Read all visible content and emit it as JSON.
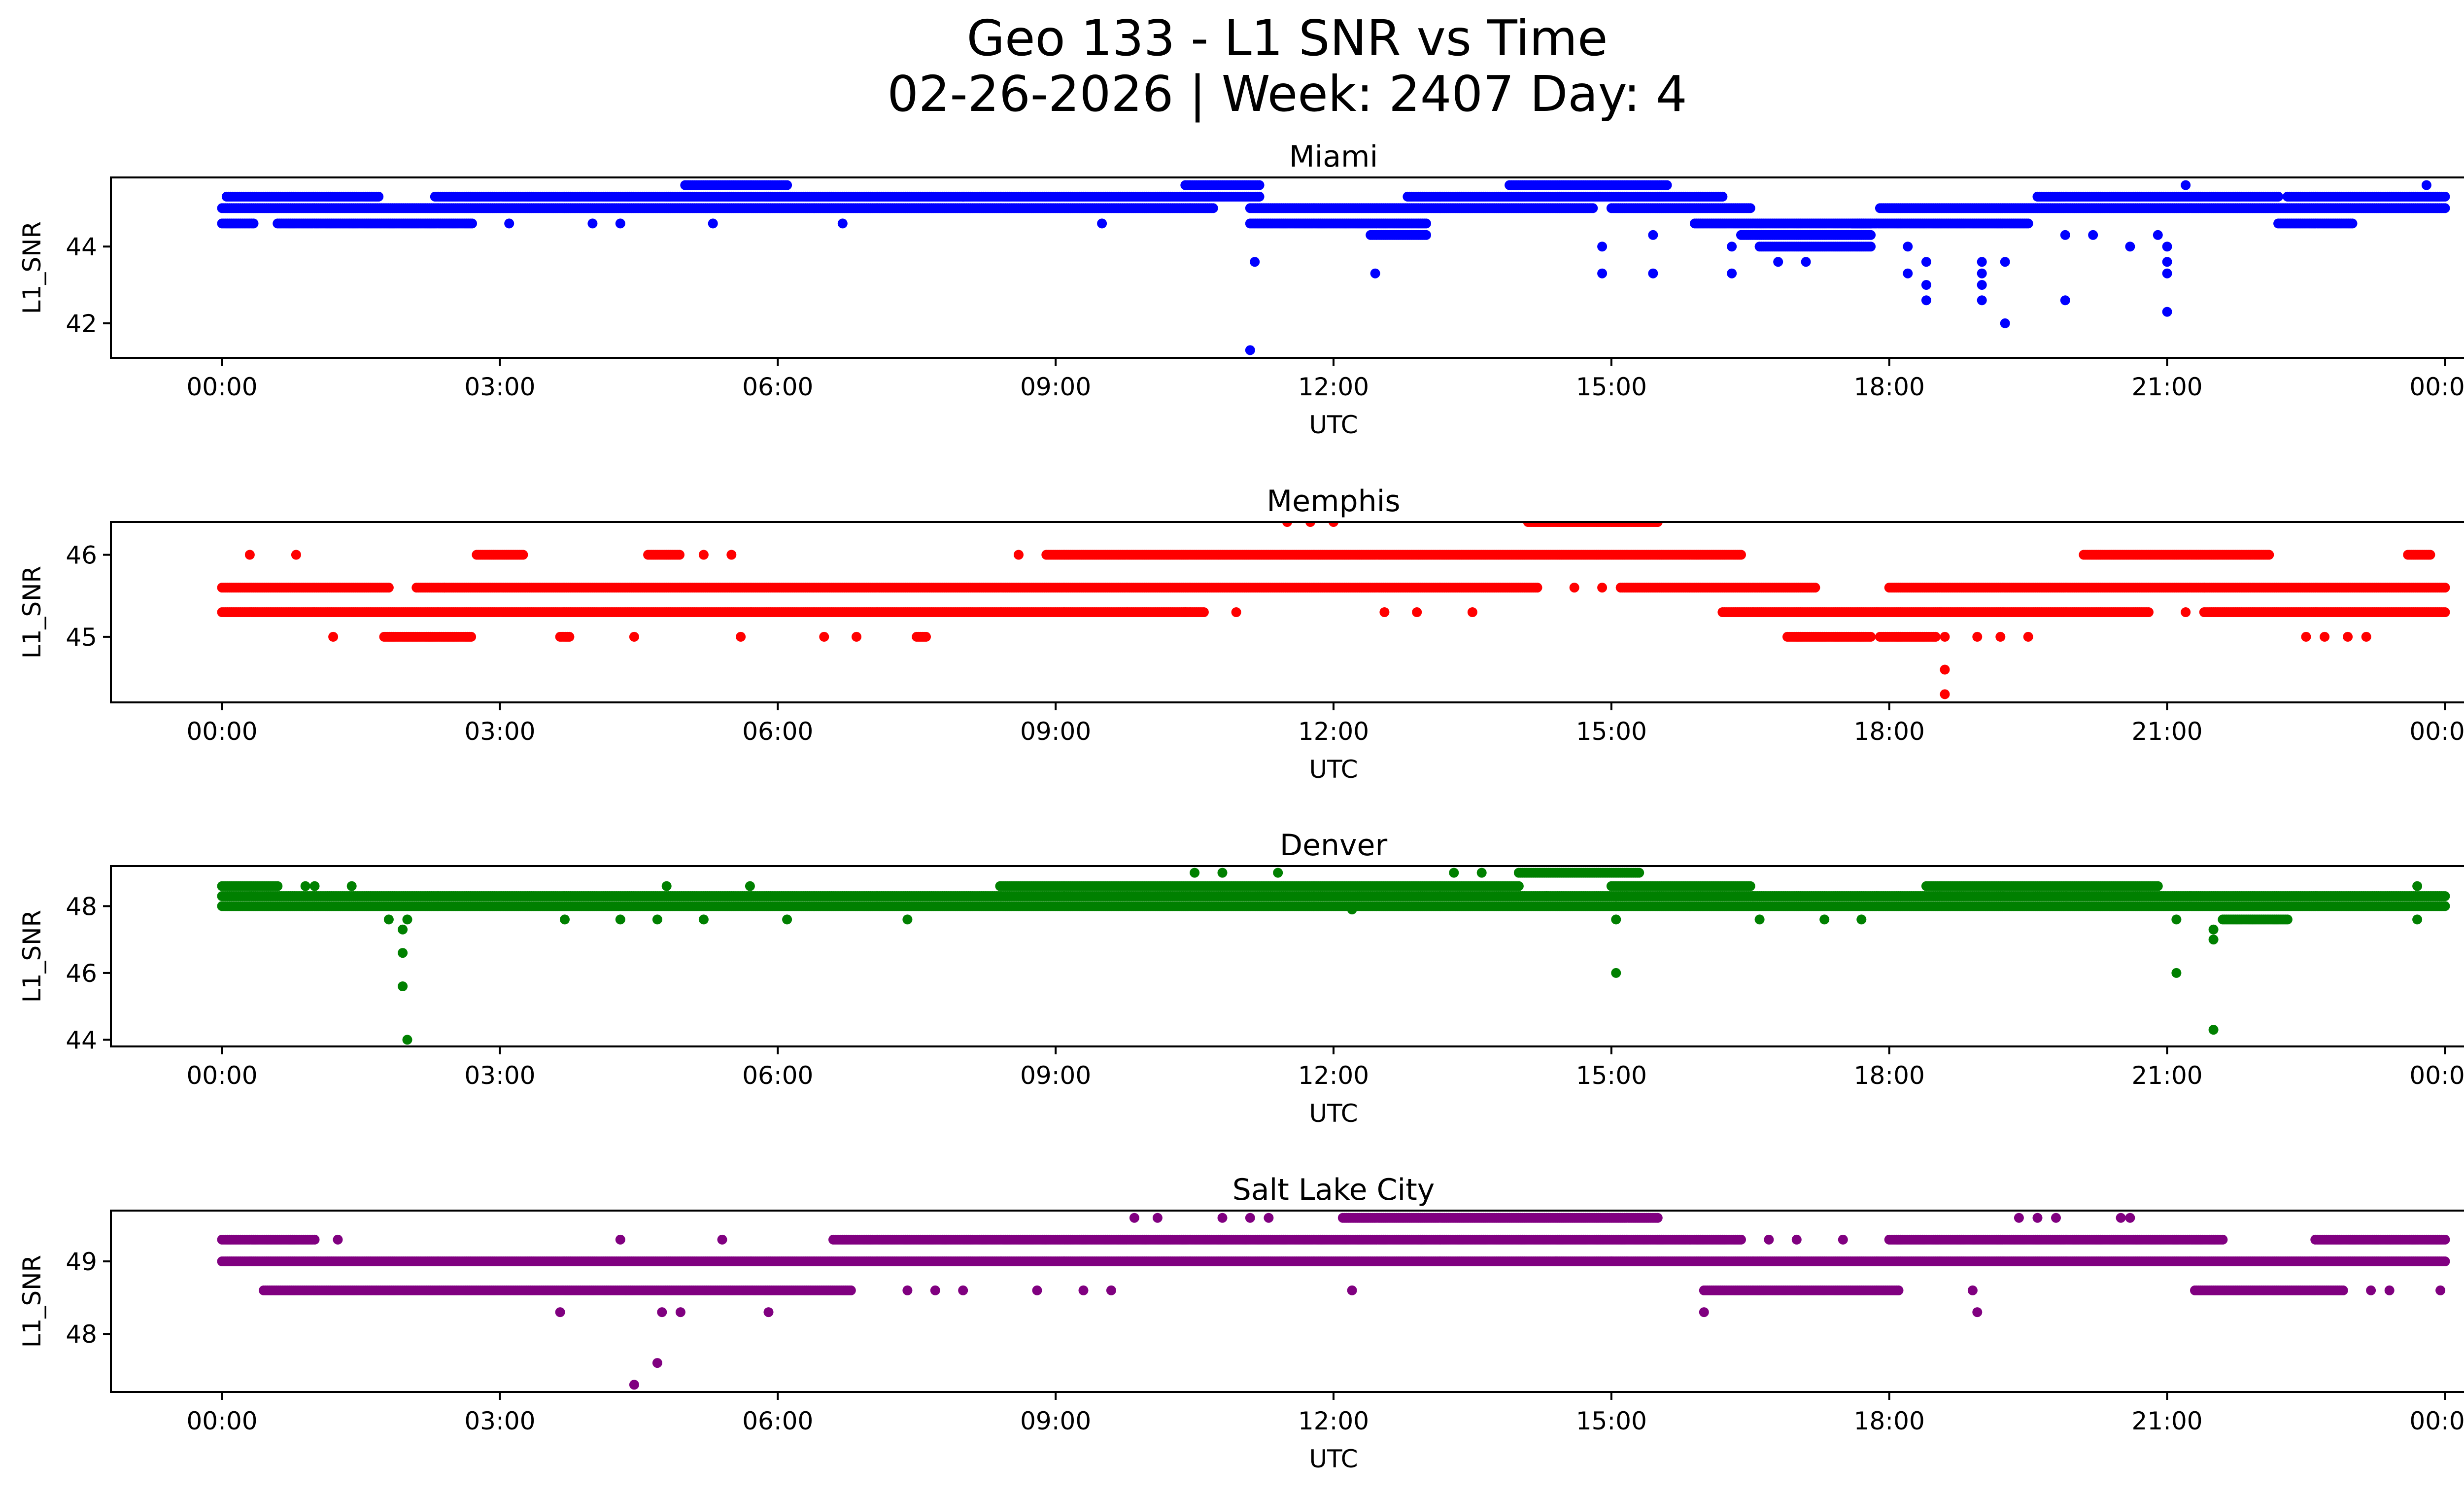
{
  "figure": {
    "title_line1": "Geo 133 - L1 SNR vs Time",
    "title_line2": "02-26-2026 | Week: 2407 Day: 4"
  },
  "chart_data": [
    {
      "type": "scatter",
      "title": "Miami",
      "xlabel": "UTC",
      "ylabel": "L1_SNR",
      "color": "#0000ff",
      "xlim_hours": [
        -1.2,
        25.2
      ],
      "ylim": [
        41.1,
        45.8
      ],
      "x_ticks": [
        "00:00",
        "03:00",
        "06:00",
        "09:00",
        "12:00",
        "15:00",
        "18:00",
        "21:00",
        "00:00"
      ],
      "x_tick_hours": [
        0,
        3,
        6,
        9,
        12,
        15,
        18,
        21,
        24
      ],
      "y_ticks": [
        42,
        44
      ],
      "runs": [
        [
          45.3,
          0.05,
          1.7
        ],
        [
          45.0,
          0.0,
          10.7
        ],
        [
          44.6,
          0.0,
          0.35
        ],
        [
          44.6,
          0.6,
          2.7
        ],
        [
          45.3,
          2.3,
          8.0
        ],
        [
          45.6,
          5.0,
          6.1
        ],
        [
          45.3,
          8.0,
          11.2
        ],
        [
          45.6,
          10.4,
          11.2
        ],
        [
          44.6,
          11.1,
          13.0
        ],
        [
          45.0,
          11.1,
          14.8
        ],
        [
          44.3,
          12.4,
          13.0
        ],
        [
          45.3,
          12.8,
          16.2
        ],
        [
          45.6,
          13.9,
          15.6
        ],
        [
          45.0,
          15.0,
          16.5
        ],
        [
          44.6,
          15.9,
          17.8
        ],
        [
          44.3,
          16.4,
          17.8
        ],
        [
          44.0,
          16.6,
          17.8
        ],
        [
          44.6,
          17.6,
          19.5
        ],
        [
          45.0,
          17.9,
          24.0
        ],
        [
          45.3,
          19.6,
          22.2
        ],
        [
          45.3,
          22.3,
          24.0
        ],
        [
          44.6,
          22.2,
          23.0
        ]
      ],
      "points": [
        [
          3.1,
          44.6
        ],
        [
          4.0,
          44.6
        ],
        [
          4.3,
          44.6
        ],
        [
          5.3,
          44.6
        ],
        [
          6.7,
          44.6
        ],
        [
          9.5,
          44.6
        ],
        [
          11.15,
          43.6
        ],
        [
          11.1,
          41.3
        ],
        [
          12.45,
          43.3
        ],
        [
          14.9,
          43.3
        ],
        [
          14.9,
          44.0
        ],
        [
          15.45,
          43.3
        ],
        [
          15.45,
          44.3
        ],
        [
          16.3,
          43.3
        ],
        [
          16.3,
          44.0
        ],
        [
          16.8,
          43.6
        ],
        [
          17.1,
          43.6
        ],
        [
          18.2,
          43.3
        ],
        [
          18.2,
          44.0
        ],
        [
          18.4,
          43.6
        ],
        [
          18.4,
          43.0
        ],
        [
          18.4,
          42.6
        ],
        [
          19.0,
          43.6
        ],
        [
          19.0,
          43.3
        ],
        [
          19.0,
          43.0
        ],
        [
          19.0,
          42.6
        ],
        [
          19.25,
          43.6
        ],
        [
          19.25,
          42.0
        ],
        [
          19.9,
          44.3
        ],
        [
          19.9,
          42.6
        ],
        [
          20.2,
          44.3
        ],
        [
          20.6,
          44.0
        ],
        [
          20.9,
          44.3
        ],
        [
          21.0,
          44.0
        ],
        [
          21.0,
          43.6
        ],
        [
          21.0,
          43.3
        ],
        [
          21.0,
          42.3
        ],
        [
          21.2,
          45.6
        ],
        [
          23.8,
          45.6
        ]
      ]
    },
    {
      "type": "scatter",
      "title": "Memphis",
      "xlabel": "UTC",
      "ylabel": "L1_SNR",
      "color": "#ff0000",
      "xlim_hours": [
        -1.2,
        25.2
      ],
      "ylim": [
        44.2,
        46.4
      ],
      "x_ticks": [
        "00:00",
        "03:00",
        "06:00",
        "09:00",
        "12:00",
        "15:00",
        "18:00",
        "21:00",
        "00:00"
      ],
      "x_tick_hours": [
        0,
        3,
        6,
        9,
        12,
        15,
        18,
        21,
        24
      ],
      "y_ticks": [
        45,
        46
      ],
      "runs": [
        [
          45.6,
          0.0,
          1.8
        ],
        [
          45.3,
          0.0,
          10.6
        ],
        [
          45.6,
          2.1,
          14.2
        ],
        [
          46.0,
          2.75,
          3.25
        ],
        [
          46.0,
          4.6,
          4.95
        ],
        [
          45.0,
          1.75,
          2.7
        ],
        [
          45.0,
          3.65,
          3.75
        ],
        [
          45.0,
          7.5,
          7.6
        ],
        [
          46.0,
          8.9,
          16.4
        ],
        [
          45.6,
          15.1,
          17.2
        ],
        [
          45.3,
          16.2,
          20.8
        ],
        [
          45.0,
          16.9,
          17.8
        ],
        [
          45.0,
          17.9,
          18.5
        ],
        [
          45.6,
          18.0,
          24.0
        ],
        [
          46.4,
          14.1,
          15.5
        ],
        [
          46.0,
          20.1,
          22.1
        ],
        [
          45.3,
          21.4,
          24.0
        ],
        [
          46.0,
          23.6,
          23.85
        ]
      ],
      "points": [
        [
          0.3,
          46.0
        ],
        [
          0.8,
          46.0
        ],
        [
          1.2,
          45.0
        ],
        [
          2.4,
          45.6
        ],
        [
          4.45,
          45.0
        ],
        [
          5.2,
          46.0
        ],
        [
          5.5,
          46.0
        ],
        [
          5.6,
          45.0
        ],
        [
          6.5,
          45.0
        ],
        [
          6.85,
          45.0
        ],
        [
          8.6,
          46.0
        ],
        [
          10.4,
          45.3
        ],
        [
          10.95,
          45.3
        ],
        [
          11.5,
          46.4
        ],
        [
          11.75,
          46.4
        ],
        [
          12.0,
          46.4
        ],
        [
          12.55,
          45.3
        ],
        [
          12.9,
          45.3
        ],
        [
          13.5,
          45.3
        ],
        [
          14.6,
          45.6
        ],
        [
          14.9,
          45.6
        ],
        [
          18.6,
          45.0
        ],
        [
          18.95,
          45.0
        ],
        [
          19.2,
          45.0
        ],
        [
          19.5,
          45.0
        ],
        [
          18.6,
          44.6
        ],
        [
          18.6,
          44.3
        ],
        [
          21.2,
          45.3
        ],
        [
          21.4,
          45.6
        ],
        [
          22.5,
          45.0
        ],
        [
          22.7,
          45.0
        ],
        [
          22.95,
          45.0
        ],
        [
          23.15,
          45.0
        ]
      ]
    },
    {
      "type": "scatter",
      "title": "Denver",
      "xlabel": "UTC",
      "ylabel": "L1_SNR",
      "color": "#008000",
      "xlim_hours": [
        -1.2,
        25.2
      ],
      "ylim": [
        43.8,
        49.2
      ],
      "x_ticks": [
        "00:00",
        "03:00",
        "06:00",
        "09:00",
        "12:00",
        "15:00",
        "18:00",
        "21:00",
        "00:00"
      ],
      "x_tick_hours": [
        0,
        3,
        6,
        9,
        12,
        15,
        18,
        21,
        24
      ],
      "y_ticks": [
        44,
        46,
        48
      ],
      "runs": [
        [
          48.6,
          0.0,
          0.6
        ],
        [
          48.3,
          0.0,
          24.0
        ],
        [
          48.0,
          0.0,
          24.0
        ],
        [
          48.6,
          8.4,
          14.0
        ],
        [
          49.0,
          14.0,
          15.3
        ],
        [
          48.6,
          15.0,
          16.5
        ],
        [
          48.6,
          18.4,
          20.9
        ],
        [
          47.6,
          21.6,
          22.3
        ]
      ],
      "points": [
        [
          0.9,
          48.6
        ],
        [
          1.0,
          48.6
        ],
        [
          1.4,
          48.6
        ],
        [
          1.8,
          47.6
        ],
        [
          2.0,
          47.6
        ],
        [
          1.95,
          47.3
        ],
        [
          1.95,
          46.6
        ],
        [
          1.95,
          45.6
        ],
        [
          2.0,
          44.0
        ],
        [
          3.7,
          47.6
        ],
        [
          4.3,
          47.6
        ],
        [
          4.7,
          47.6
        ],
        [
          4.8,
          48.6
        ],
        [
          5.2,
          47.6
        ],
        [
          5.7,
          48.6
        ],
        [
          6.1,
          47.6
        ],
        [
          7.4,
          47.6
        ],
        [
          10.5,
          49.0
        ],
        [
          10.8,
          49.0
        ],
        [
          11.4,
          49.0
        ],
        [
          12.2,
          47.9
        ],
        [
          13.3,
          49.0
        ],
        [
          13.6,
          49.0
        ],
        [
          14.3,
          48.3
        ],
        [
          15.05,
          47.6
        ],
        [
          15.05,
          48.0
        ],
        [
          15.05,
          46.0
        ],
        [
          16.6,
          47.6
        ],
        [
          17.3,
          47.6
        ],
        [
          17.7,
          47.6
        ],
        [
          21.1,
          47.6
        ],
        [
          21.1,
          46.0
        ],
        [
          21.5,
          47.3
        ],
        [
          21.5,
          47.0
        ],
        [
          21.5,
          44.3
        ],
        [
          23.7,
          48.6
        ],
        [
          23.7,
          47.6
        ]
      ]
    },
    {
      "type": "scatter",
      "title": "Salt Lake City",
      "xlabel": "UTC",
      "ylabel": "L1_SNR",
      "color": "#800080",
      "xlim_hours": [
        -1.2,
        25.2
      ],
      "ylim": [
        47.2,
        49.7
      ],
      "x_ticks": [
        "00:00",
        "03:00",
        "06:00",
        "09:00",
        "12:00",
        "15:00",
        "18:00",
        "21:00",
        "00:00"
      ],
      "x_tick_hours": [
        0,
        3,
        6,
        9,
        12,
        15,
        18,
        21,
        24
      ],
      "y_ticks": [
        48,
        49
      ],
      "runs": [
        [
          49.3,
          0.0,
          1.0
        ],
        [
          49.0,
          0.0,
          24.0
        ],
        [
          48.6,
          0.45,
          6.8
        ],
        [
          49.3,
          6.6,
          16.4
        ],
        [
          49.6,
          12.1,
          15.5
        ],
        [
          48.6,
          16.0,
          18.1
        ],
        [
          49.3,
          18.0,
          21.6
        ],
        [
          48.6,
          21.3,
          22.9
        ],
        [
          49.3,
          22.6,
          24.0
        ]
      ],
      "points": [
        [
          1.25,
          49.3
        ],
        [
          3.65,
          48.3
        ],
        [
          4.3,
          49.3
        ],
        [
          4.45,
          47.3
        ],
        [
          4.7,
          47.6
        ],
        [
          4.75,
          48.3
        ],
        [
          4.95,
          48.3
        ],
        [
          5.4,
          49.3
        ],
        [
          5.9,
          48.3
        ],
        [
          7.4,
          48.6
        ],
        [
          7.7,
          48.6
        ],
        [
          8.0,
          48.6
        ],
        [
          8.8,
          48.6
        ],
        [
          9.3,
          48.6
        ],
        [
          9.6,
          48.6
        ],
        [
          9.85,
          49.6
        ],
        [
          10.1,
          49.6
        ],
        [
          10.8,
          49.6
        ],
        [
          11.1,
          49.6
        ],
        [
          11.3,
          49.6
        ],
        [
          12.2,
          48.6
        ],
        [
          14.4,
          49.0
        ],
        [
          15.0,
          49.0
        ],
        [
          16.0,
          48.3
        ],
        [
          16.7,
          49.3
        ],
        [
          17.0,
          49.3
        ],
        [
          17.5,
          49.3
        ],
        [
          18.9,
          48.6
        ],
        [
          18.95,
          48.3
        ],
        [
          19.4,
          49.6
        ],
        [
          19.6,
          49.6
        ],
        [
          19.8,
          49.6
        ],
        [
          20.5,
          49.6
        ],
        [
          20.6,
          49.6
        ],
        [
          23.2,
          48.6
        ],
        [
          23.4,
          48.6
        ],
        [
          23.95,
          48.6
        ]
      ]
    }
  ]
}
